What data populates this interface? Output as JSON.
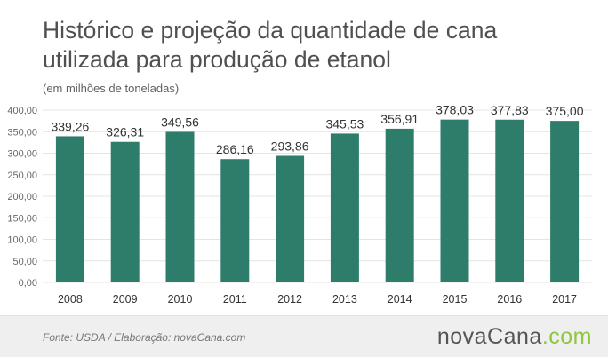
{
  "title": "Histórico e projeção da quantidade de cana utilizada para produção de etanol",
  "subtitle": "(em milhões de toneladas)",
  "footer": {
    "source": "Fonte:  USDA / Elaboração:  novaCana.com",
    "logo_part1": "nova",
    "logo_part2": "Cana",
    "logo_part3": ".com"
  },
  "colors": {
    "bar": "#2e7d6a",
    "grid": "#e4e4e4",
    "axis_text": "#666666",
    "label_text": "#333333",
    "logo_accent": "#8dc63f"
  },
  "chart_data": {
    "type": "bar",
    "title": "Histórico e projeção da quantidade de cana utilizada para produção de etanol",
    "subtitle": "(em milhões de toneladas)",
    "xlabel": "",
    "ylabel": "",
    "categories": [
      "2008",
      "2009",
      "2010",
      "2011",
      "2012",
      "2013",
      "2014",
      "2015",
      "2016",
      "2017"
    ],
    "values": [
      339.26,
      326.31,
      349.56,
      286.16,
      293.86,
      345.53,
      356.91,
      378.03,
      377.83,
      375.0
    ],
    "value_labels": [
      "339,26",
      "326,31",
      "349,56",
      "286,16",
      "293,86",
      "345,53",
      "356,91",
      "378,03",
      "377,83",
      "375,00"
    ],
    "ylim": [
      0,
      400
    ],
    "yticks": [
      0,
      50,
      100,
      150,
      200,
      250,
      300,
      350,
      400
    ],
    "ytick_labels": [
      "0,00",
      "50,00",
      "100,00",
      "150,00",
      "200,00",
      "250,00",
      "300,00",
      "350,00",
      "400,00"
    ],
    "grid": true,
    "legend": false
  }
}
